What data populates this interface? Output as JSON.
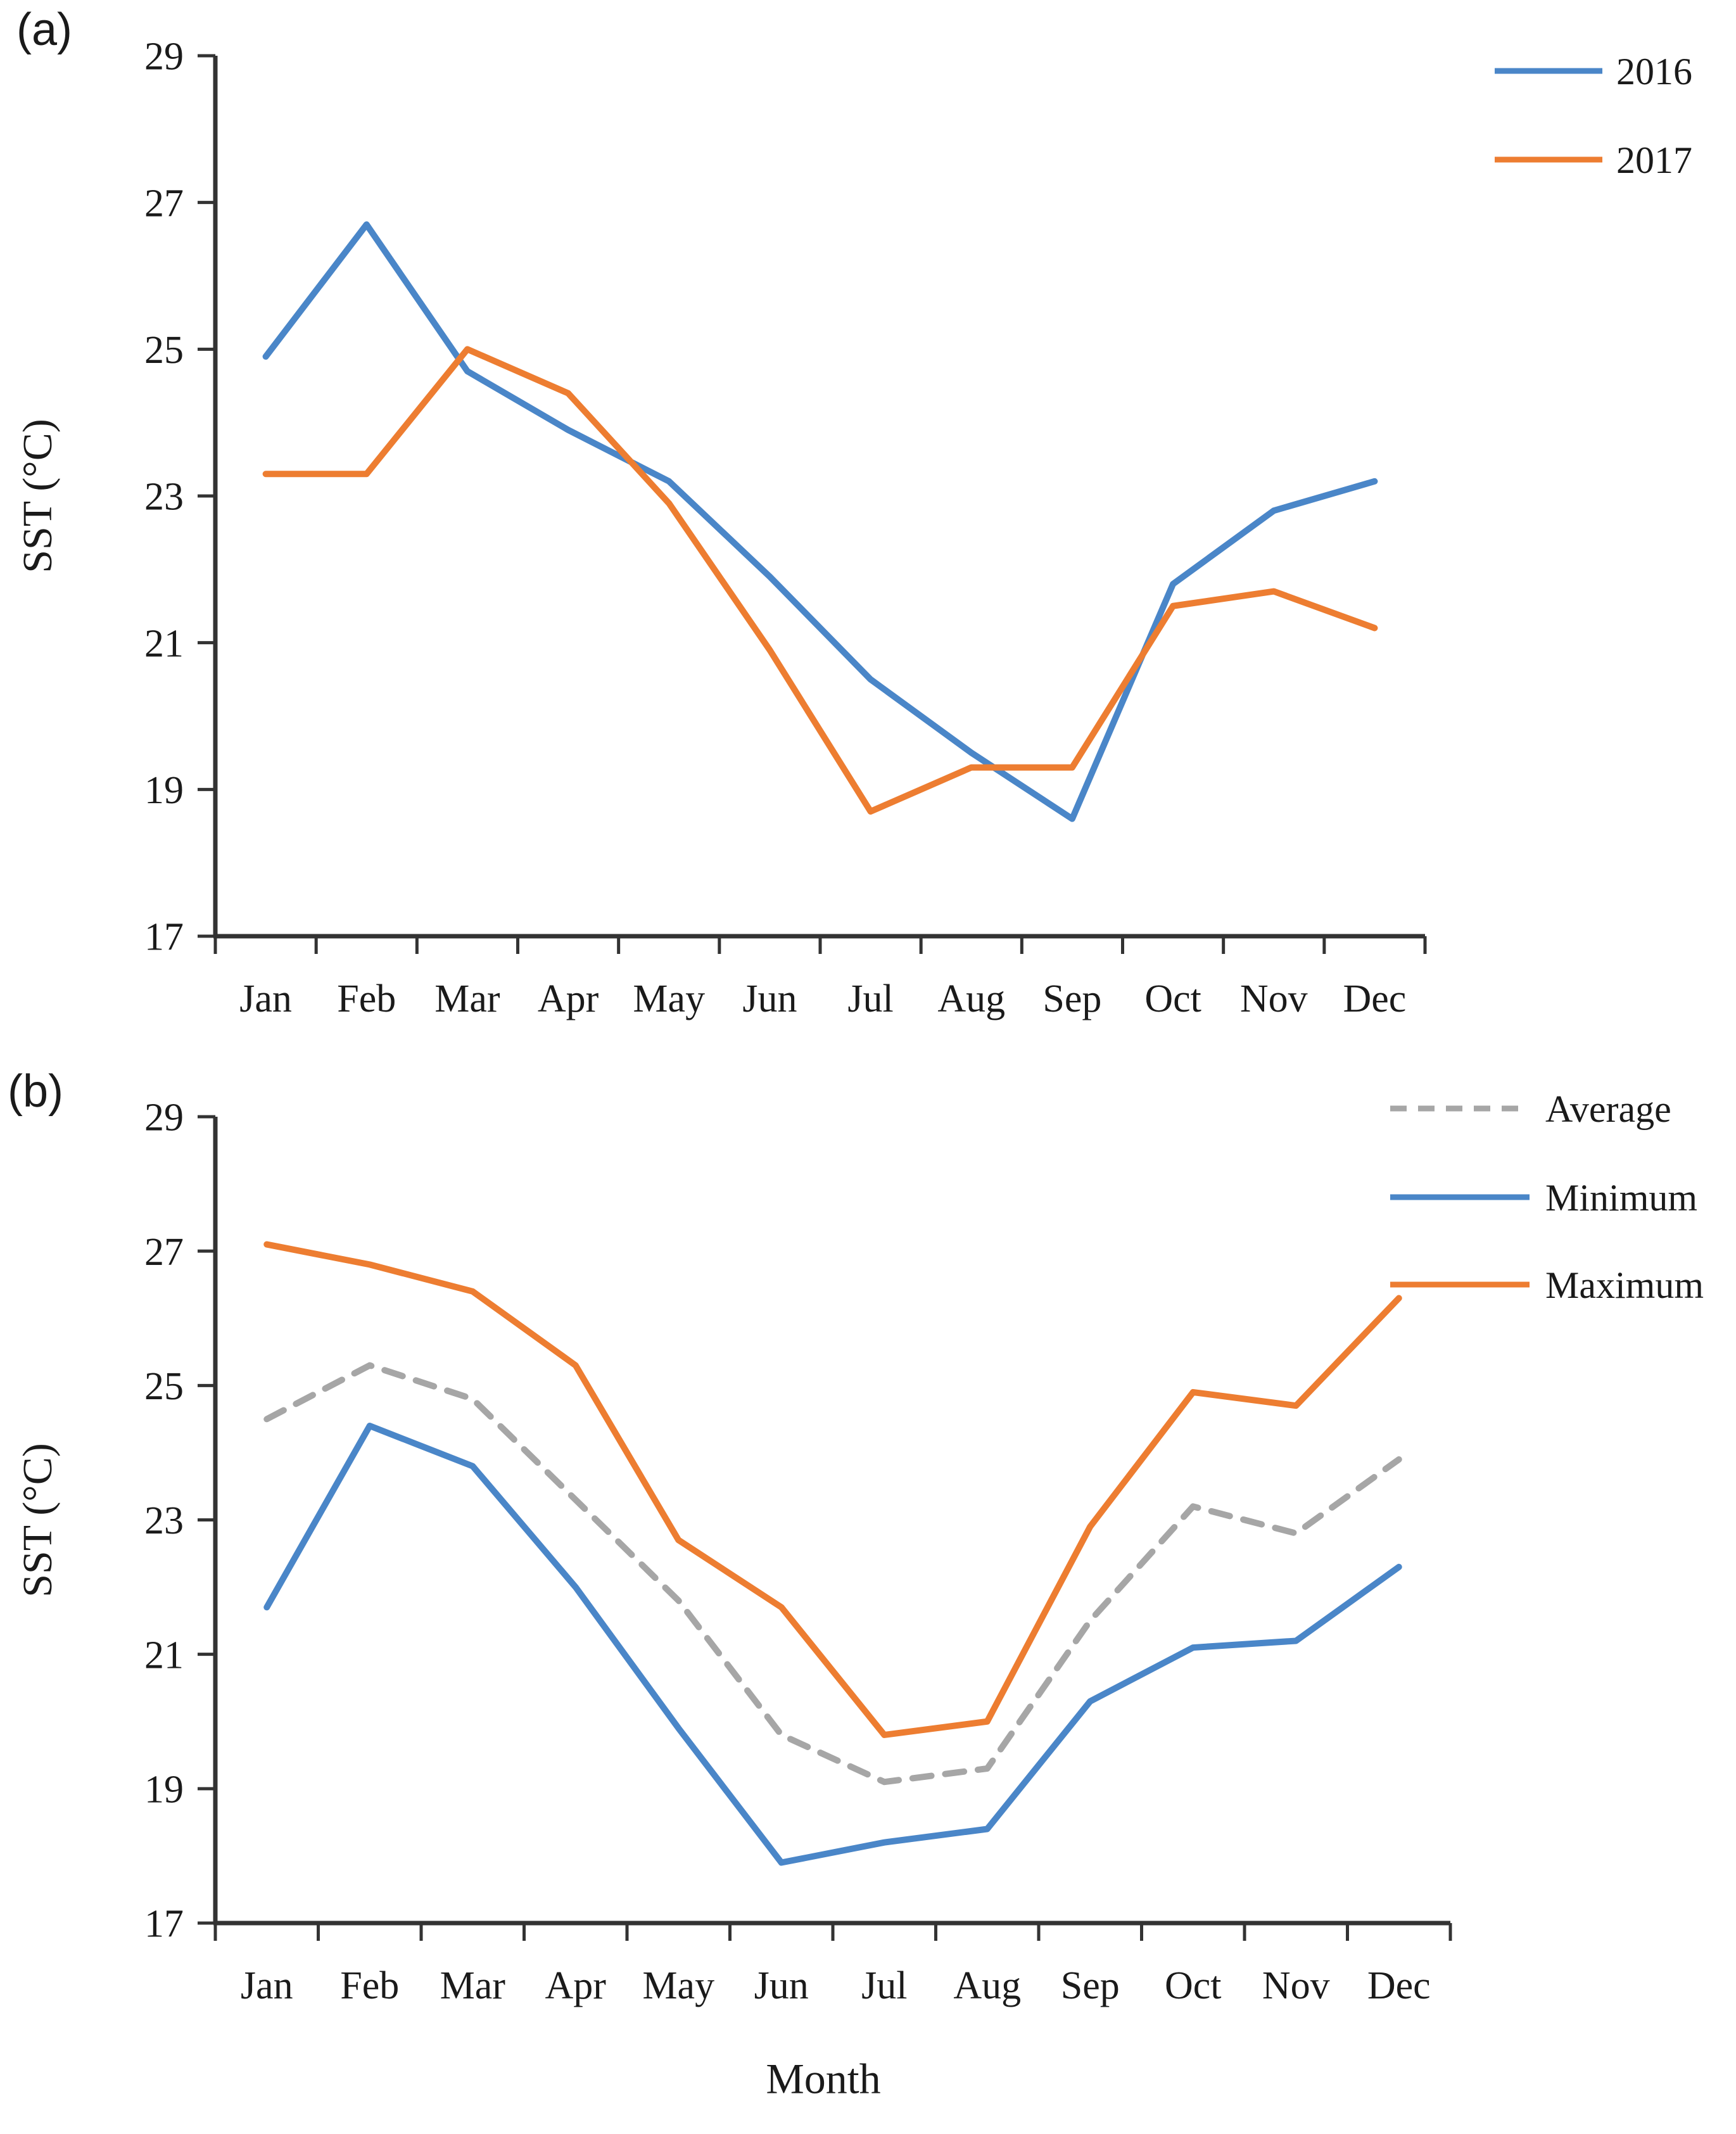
{
  "figure": {
    "background": "#ffffff",
    "axis_color": "#333333",
    "text_color": "#1a1a1a"
  },
  "panels": [
    {
      "tag": "(a)",
      "ylabel": "SST (°C)",
      "xlabel": ""
    },
    {
      "tag": "(b)",
      "ylabel": "SST (°C)",
      "xlabel": "Month"
    }
  ],
  "chart_data": [
    {
      "type": "line",
      "title": "",
      "xlabel": "",
      "ylabel": "SST (°C)",
      "categories": [
        "Jan",
        "Feb",
        "Mar",
        "Apr",
        "May",
        "Jun",
        "Jul",
        "Aug",
        "Sep",
        "Oct",
        "Nov",
        "Dec"
      ],
      "ylim": [
        17,
        29
      ],
      "ytick_step": 2,
      "grid": false,
      "legend_position": "top-right",
      "series": [
        {
          "name": "2016",
          "color": "#4a86c8",
          "dashed": false,
          "values": [
            24.9,
            26.7,
            24.7,
            23.9,
            23.2,
            21.9,
            20.5,
            19.5,
            18.6,
            21.8,
            22.8,
            23.2
          ]
        },
        {
          "name": "2017",
          "color": "#ed7d31",
          "dashed": false,
          "values": [
            23.3,
            23.3,
            25.0,
            24.4,
            22.9,
            20.9,
            18.7,
            19.3,
            19.3,
            21.5,
            21.7,
            21.2
          ]
        }
      ]
    },
    {
      "type": "line",
      "title": "",
      "xlabel": "Month",
      "ylabel": "SST (°C)",
      "categories": [
        "Jan",
        "Feb",
        "Mar",
        "Apr",
        "May",
        "Jun",
        "Jul",
        "Aug",
        "Sep",
        "Oct",
        "Nov",
        "Dec"
      ],
      "ylim": [
        17,
        29
      ],
      "ytick_step": 2,
      "grid": false,
      "legend_position": "top-right",
      "series": [
        {
          "name": "Average",
          "color": "#a6a6a6",
          "dashed": true,
          "values": [
            24.5,
            25.3,
            24.8,
            23.3,
            21.8,
            19.8,
            19.1,
            19.3,
            21.5,
            23.2,
            22.8,
            23.9
          ]
        },
        {
          "name": "Minimum",
          "color": "#4a86c8",
          "dashed": false,
          "values": [
            21.7,
            24.4,
            23.8,
            22.0,
            19.9,
            17.9,
            18.2,
            18.4,
            20.3,
            21.1,
            21.2,
            22.3
          ]
        },
        {
          "name": "Maximum",
          "color": "#ed7d31",
          "dashed": false,
          "values": [
            27.1,
            26.8,
            26.4,
            25.3,
            22.7,
            21.7,
            19.8,
            20.0,
            22.9,
            24.9,
            24.7,
            26.3
          ]
        }
      ]
    }
  ]
}
